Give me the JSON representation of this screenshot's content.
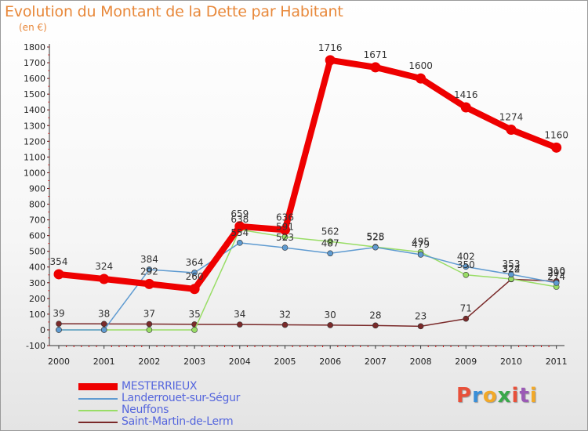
{
  "title": "Evolution du Montant de la Dette par Habitant",
  "subtitle": "(en €)",
  "logo_text": "Proxiti",
  "chart_data": {
    "type": "line",
    "title": "Evolution du Montant de la Dette par Habitant",
    "subtitle": "(en €)",
    "xlabel": "",
    "ylabel": "",
    "x": [
      "2000",
      "2001",
      "2002",
      "2003",
      "2004",
      "2005",
      "2006",
      "2007",
      "2008",
      "2009",
      "2010",
      "2011"
    ],
    "ylim": [
      -100,
      1800
    ],
    "yticks": [
      "-100",
      "0",
      "100",
      "200",
      "300",
      "400",
      "500",
      "600",
      "700",
      "800",
      "900",
      "1000",
      "1100",
      "1200",
      "1300",
      "1400",
      "1500",
      "1600",
      "1700",
      "1800"
    ],
    "grid": false,
    "legend_position": "bottom-left",
    "series": [
      {
        "name": "MESTERRIEUX",
        "color": "#ee0000",
        "values": [
          354,
          324,
          292,
          260,
          659,
          636,
          1716,
          1671,
          1600,
          1416,
          1274,
          1160
        ],
        "labels": [
          "354",
          "324",
          "292",
          "260",
          "659",
          "636",
          "1716",
          "1671",
          "1600",
          "1416",
          "1274",
          "1160"
        ]
      },
      {
        "name": "Landerrouet-sur-Ségur",
        "color": "#5f9bd1",
        "values": [
          0,
          0,
          384,
          364,
          554,
          523,
          487,
          525,
          479,
          402,
          353,
          299
        ],
        "labels": [
          "",
          "",
          "384",
          "364",
          "554",
          "523",
          "487",
          "525",
          "479",
          "402",
          "353",
          "299"
        ]
      },
      {
        "name": "Neuffons",
        "color": "#99dd66",
        "values": [
          0,
          0,
          0,
          0,
          638,
          591,
          562,
          528,
          495,
          350,
          324,
          274
        ],
        "labels": [
          "",
          "",
          "",
          "",
          "638",
          "591",
          "562",
          "528",
          "495",
          "350",
          "324",
          "274"
        ]
      },
      {
        "name": "Saint-Martin-de-Lerm",
        "color": "#7a2a2a",
        "values": [
          39,
          38,
          37,
          35,
          34,
          32,
          30,
          28,
          23,
          71,
          322,
          310
        ],
        "labels": [
          "39",
          "38",
          "37",
          "35",
          "34",
          "32",
          "30",
          "28",
          "23",
          "71",
          "322",
          "310"
        ]
      }
    ]
  }
}
